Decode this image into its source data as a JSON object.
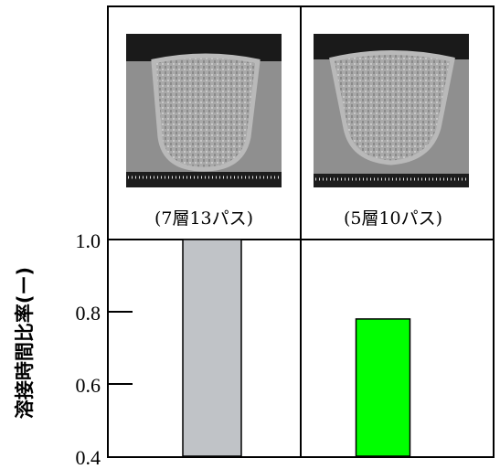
{
  "chart_data": {
    "type": "bar",
    "categories": [
      "(7層13パス)",
      "(5層10パス)"
    ],
    "series": [
      {
        "name": null,
        "values": [
          1.0,
          0.78
        ],
        "colors": [
          "#c0c3c7",
          "#00ff00"
        ]
      }
    ],
    "y_label": "溶接時間比率(ー)",
    "ylim": [
      0.4,
      1.0
    ],
    "yticks": [
      {
        "value": 0.4,
        "label": "0.4"
      },
      0.6,
      0.8,
      {
        "value": 1,
        "label": "1.0"
      }
    ]
  }
}
